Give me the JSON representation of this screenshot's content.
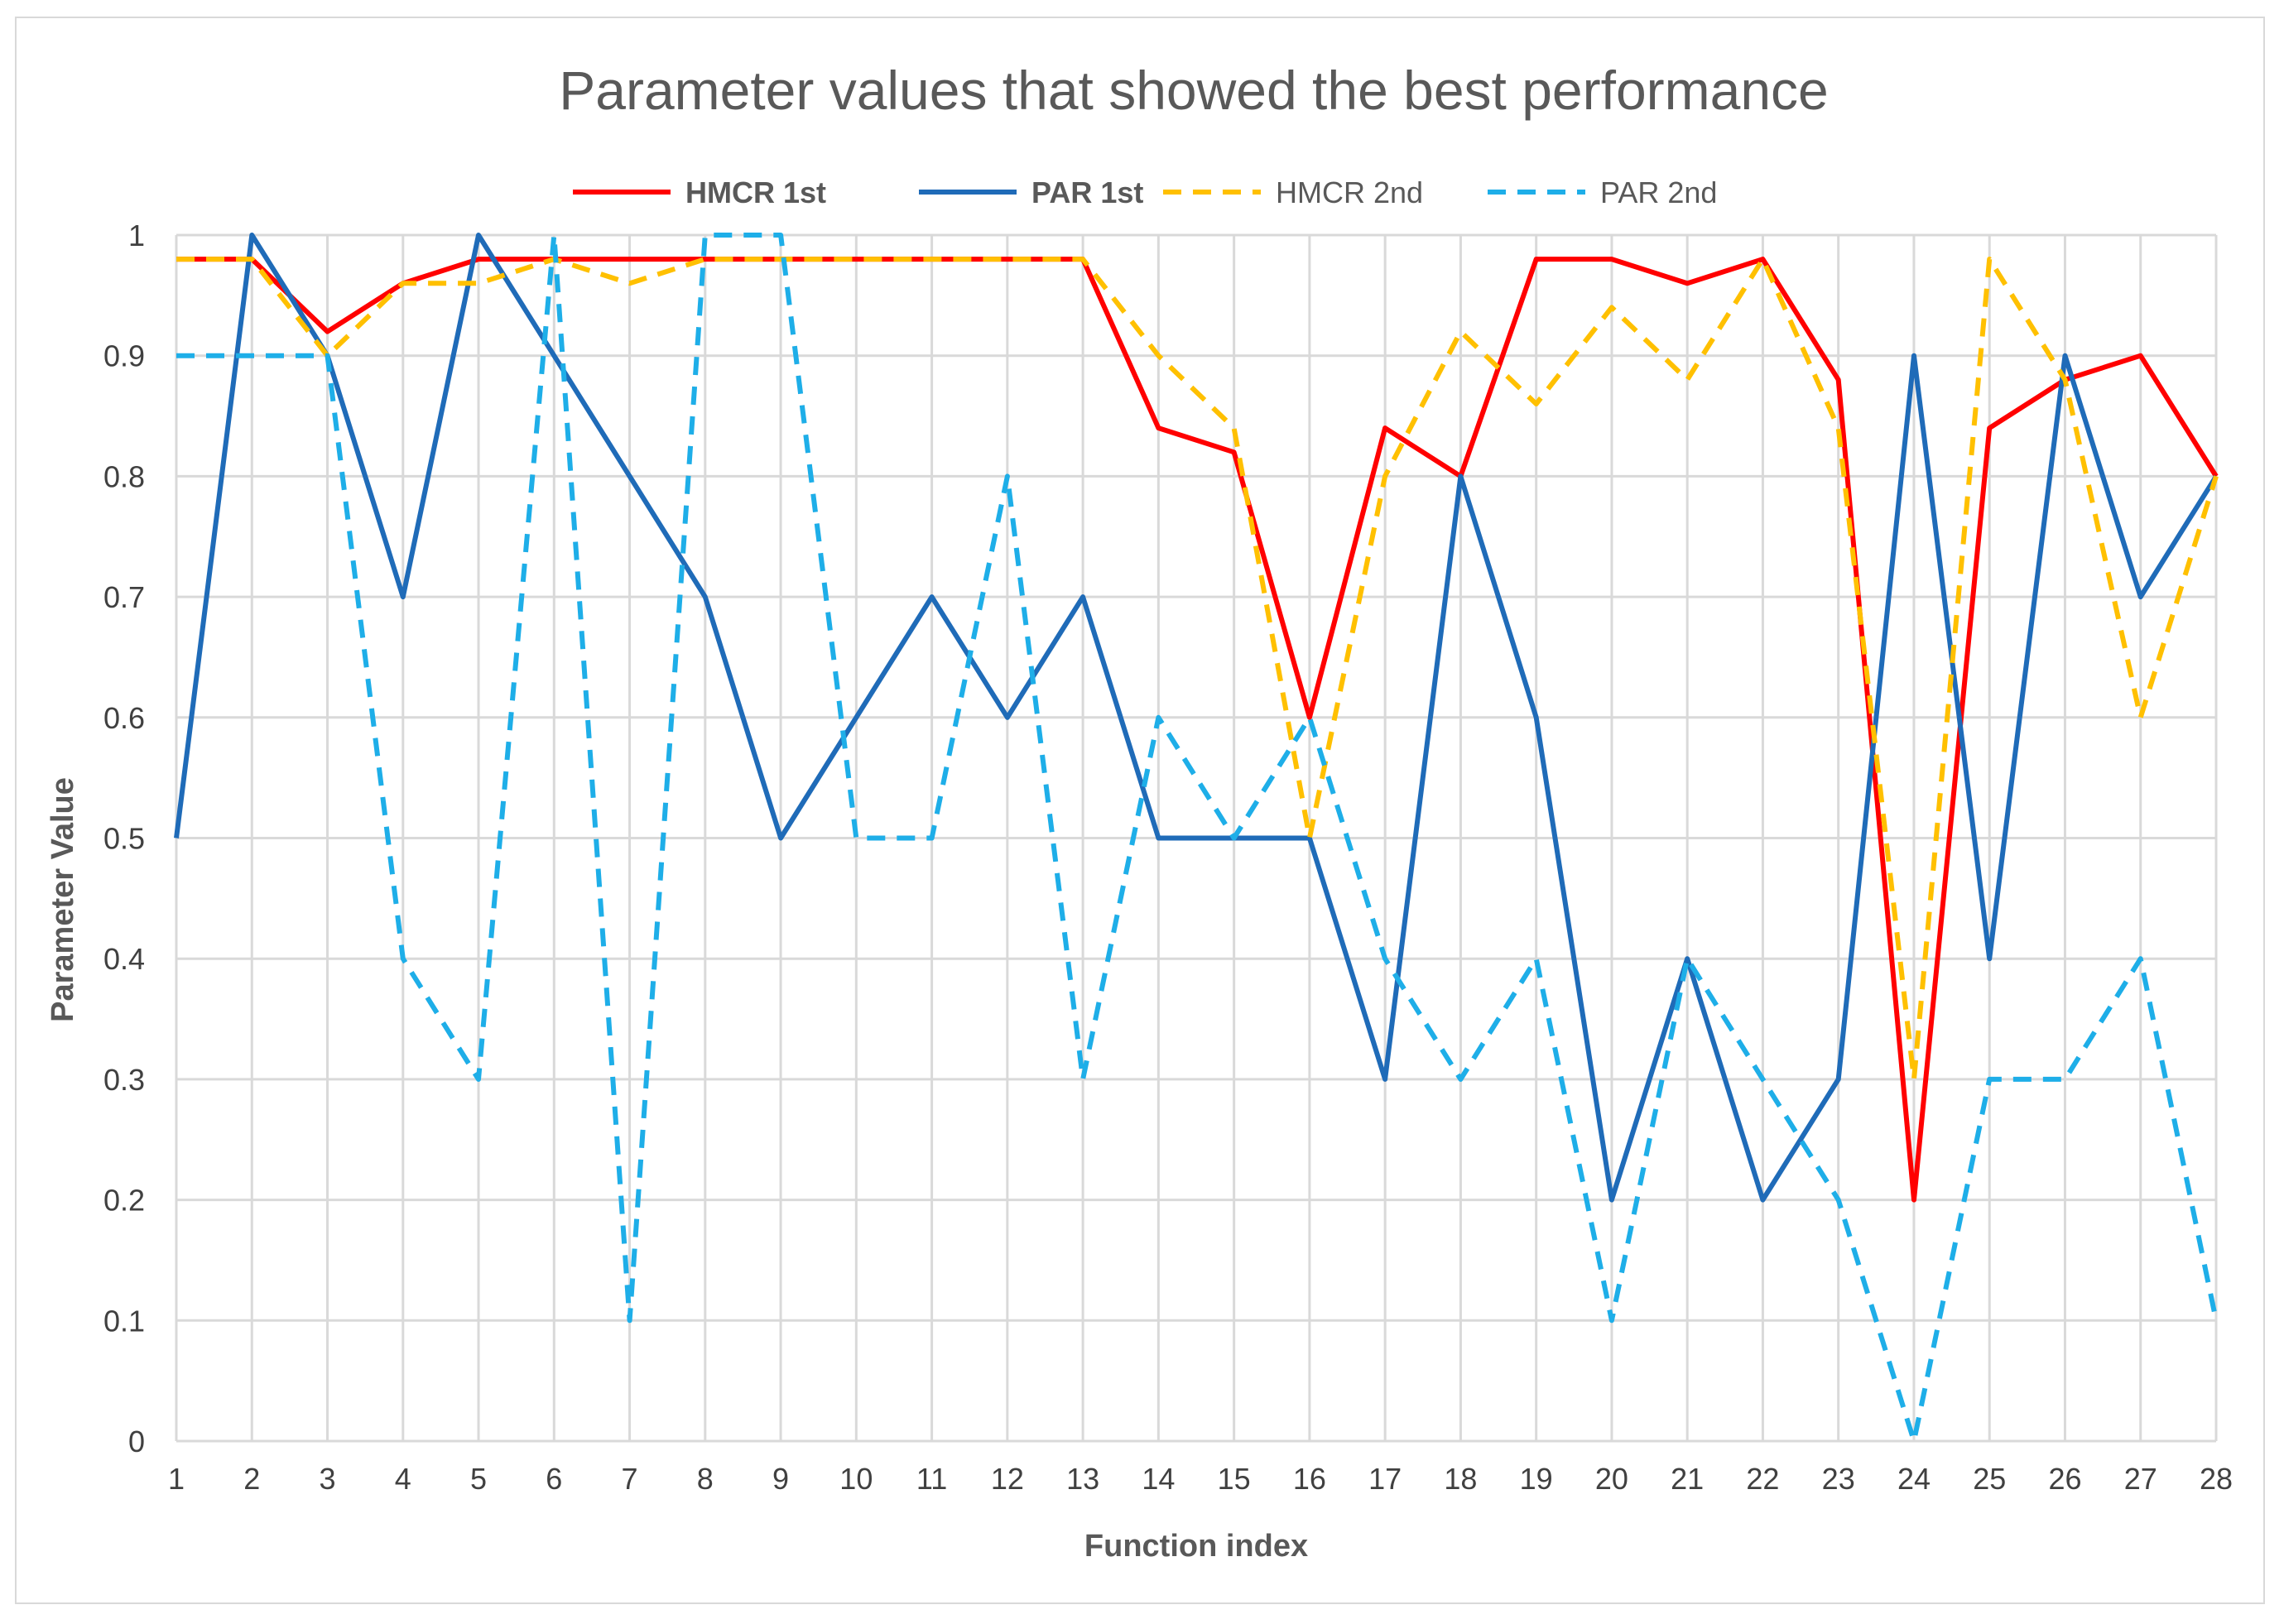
{
  "chart_data": {
    "type": "line",
    "title": "Parameter values that showed the best performance",
    "xlabel": "Function index",
    "ylabel": "Parameter Value",
    "ylim": [
      0,
      1
    ],
    "yticks": [
      "0",
      "0.1",
      "0.2",
      "0.3",
      "0.4",
      "0.5",
      "0.6",
      "0.7",
      "0.8",
      "0.9",
      "1"
    ],
    "categories": [
      "1",
      "2",
      "3",
      "4",
      "5",
      "6",
      "7",
      "8",
      "9",
      "10",
      "11",
      "12",
      "13",
      "14",
      "15",
      "16",
      "17",
      "18",
      "19",
      "20",
      "21",
      "22",
      "23",
      "24",
      "25",
      "26",
      "27",
      "28"
    ],
    "grid": "vertical and horizontal",
    "legend_position": "top",
    "series": [
      {
        "name": "HMCR 1st",
        "color": "#ff0000",
        "style": "solid",
        "values": [
          0.98,
          0.98,
          0.92,
          0.96,
          0.98,
          0.98,
          0.98,
          0.98,
          0.98,
          0.98,
          0.98,
          0.98,
          0.98,
          0.84,
          0.82,
          0.6,
          0.84,
          0.8,
          0.98,
          0.98,
          0.96,
          0.98,
          0.88,
          0.2,
          0.84,
          0.88,
          0.9,
          0.8
        ]
      },
      {
        "name": "PAR 1st",
        "color": "#1f6bb8",
        "style": "solid",
        "values": [
          0.5,
          1.0,
          0.9,
          0.7,
          1.0,
          0.9,
          0.8,
          0.7,
          0.5,
          0.6,
          0.7,
          0.6,
          0.7,
          0.5,
          0.5,
          0.5,
          0.3,
          0.8,
          0.6,
          0.2,
          0.4,
          0.2,
          0.3,
          0.9,
          0.4,
          0.9,
          0.7,
          0.8
        ]
      },
      {
        "name": "HMCR 2nd",
        "color": "#ffc000",
        "style": "dashed",
        "values": [
          0.98,
          0.98,
          0.9,
          0.96,
          0.96,
          0.98,
          0.96,
          0.98,
          0.98,
          0.98,
          0.98,
          0.98,
          0.98,
          0.9,
          0.84,
          0.5,
          0.8,
          0.92,
          0.86,
          0.94,
          0.88,
          0.98,
          0.84,
          0.3,
          0.98,
          0.88,
          0.6,
          0.8
        ]
      },
      {
        "name": "PAR 2nd",
        "color": "#1eaee8",
        "style": "dashed",
        "values": [
          0.9,
          0.9,
          0.9,
          0.4,
          0.3,
          1.0,
          0.1,
          1.0,
          1.0,
          0.5,
          0.5,
          0.8,
          0.3,
          0.6,
          0.5,
          0.6,
          0.4,
          0.3,
          0.4,
          0.1,
          0.4,
          0.3,
          0.2,
          0.0,
          0.3,
          0.3,
          0.4,
          0.1
        ]
      }
    ]
  }
}
